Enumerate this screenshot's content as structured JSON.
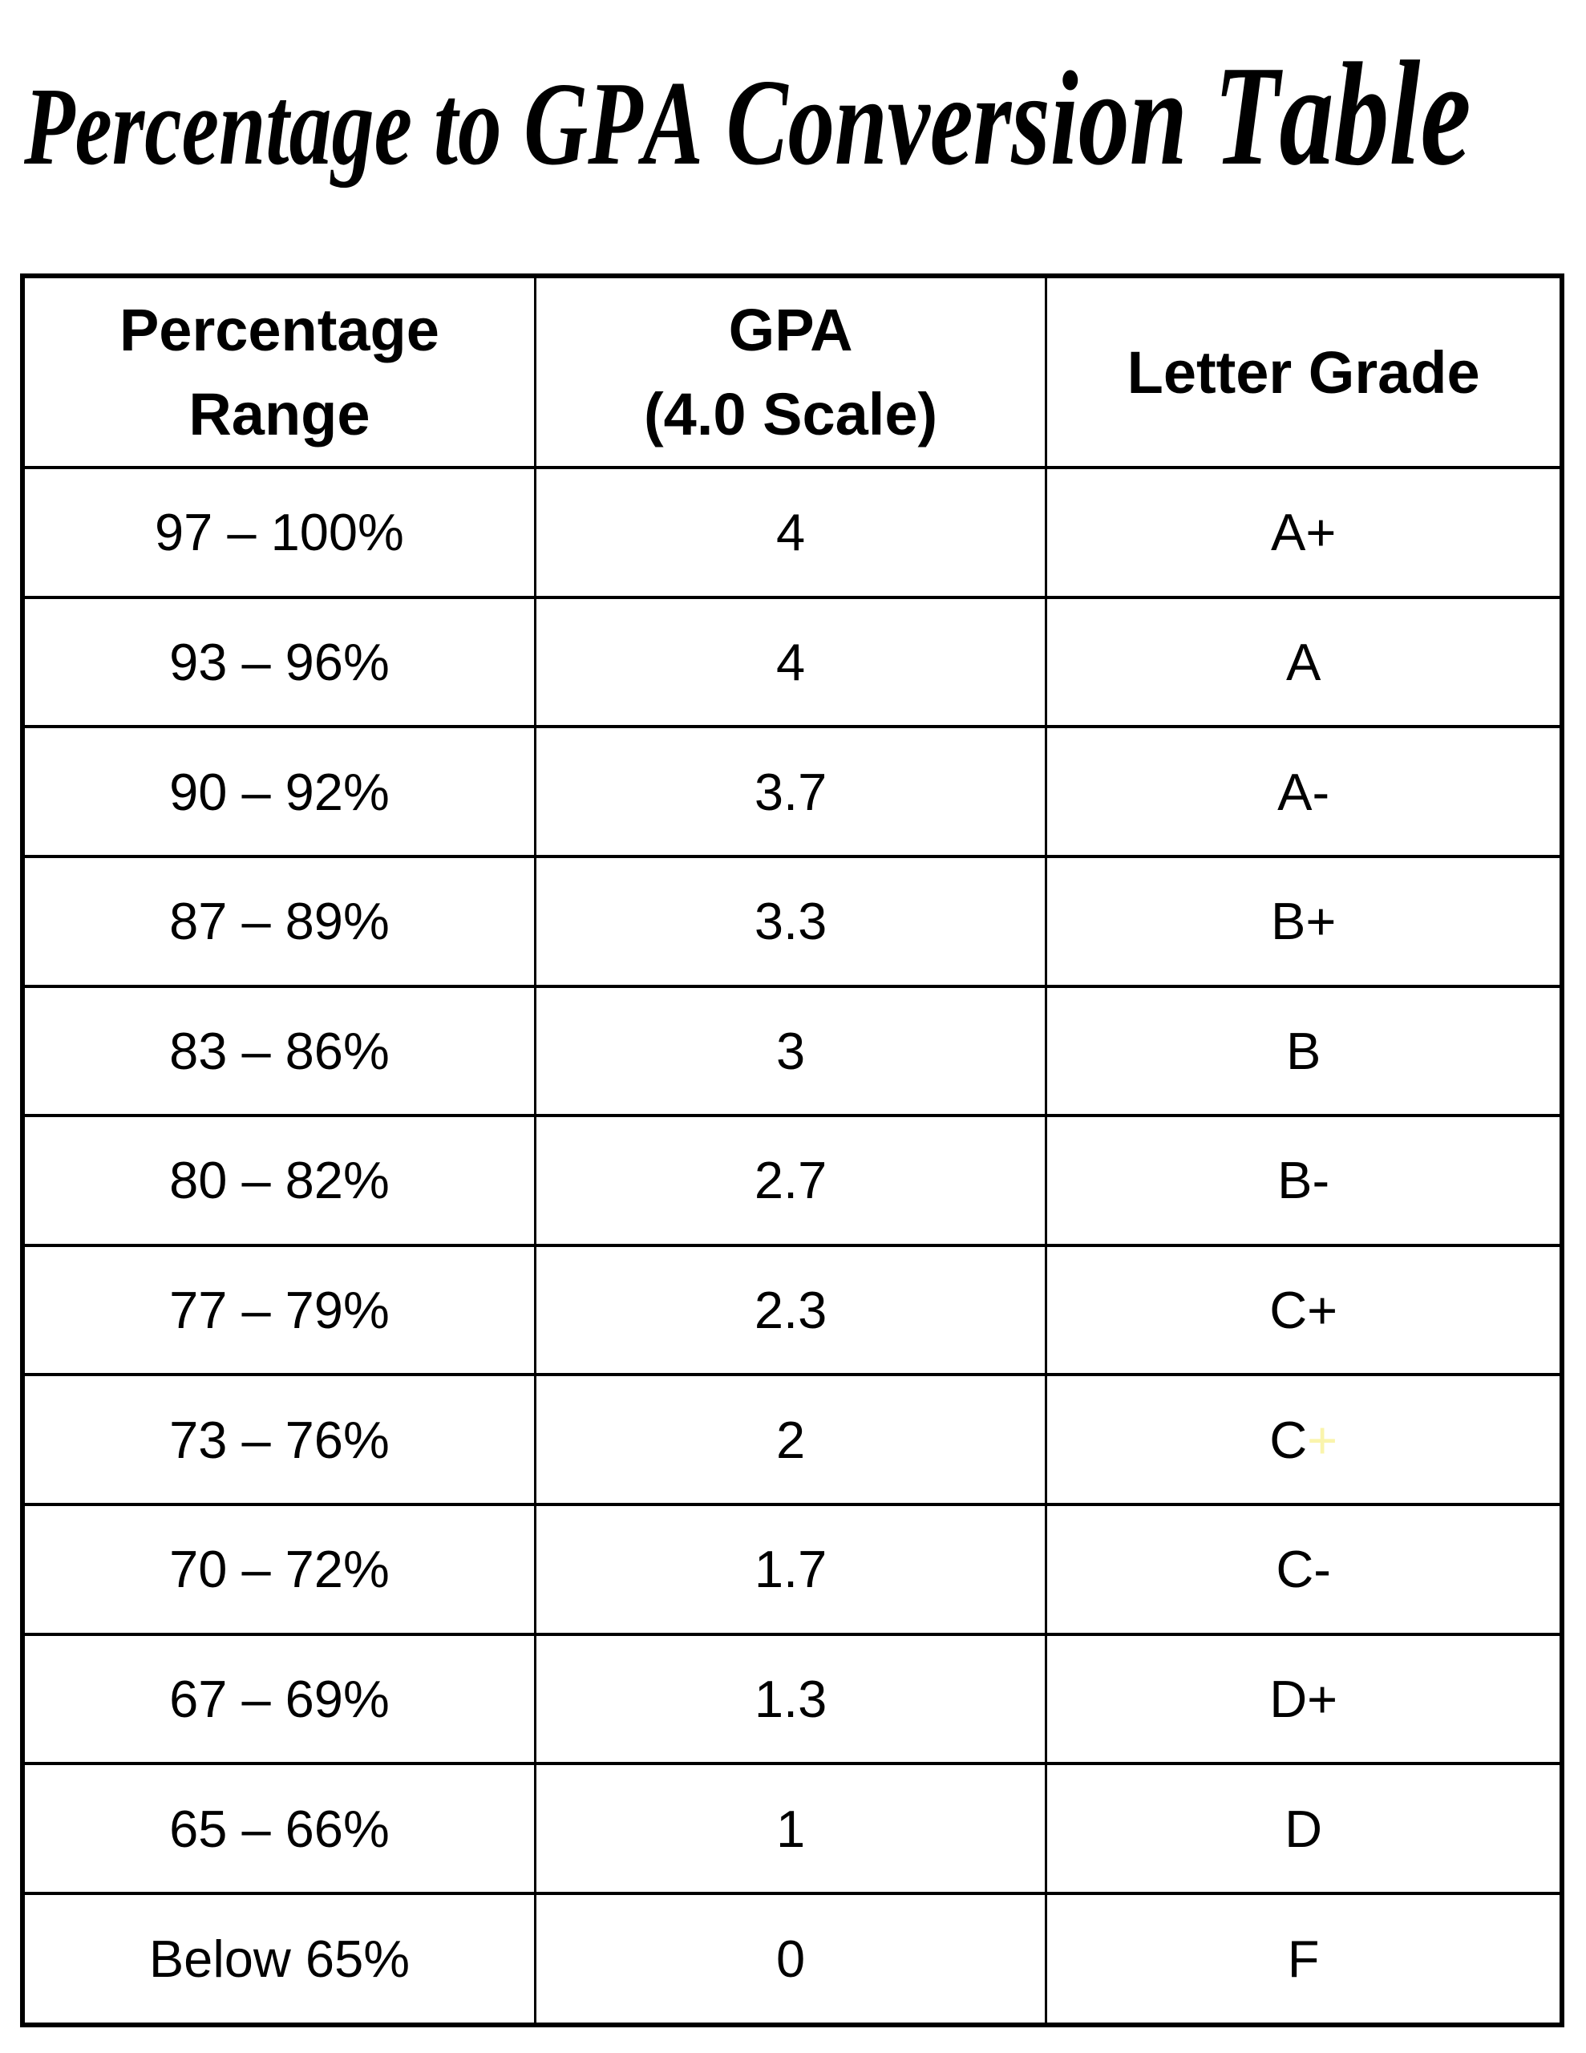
{
  "page": {
    "title": "Percentage to GPA Conversion Table",
    "background_color": "#FFFFFF",
    "text_color": "#000000",
    "border_color": "#000000"
  },
  "table": {
    "headers": [
      {
        "lines": [
          "Percentage",
          "Range"
        ]
      },
      {
        "lines": [
          "GPA",
          "(4.0 Scale)"
        ]
      },
      {
        "lines": [
          "Letter Grade"
        ]
      }
    ],
    "rows": [
      {
        "range": "97 – 100%",
        "gpa": "4",
        "letter": "A+"
      },
      {
        "range": "93 – 96%",
        "gpa": "4",
        "letter": "A"
      },
      {
        "range": "90 – 92%",
        "gpa": "3.7",
        "letter": "A-"
      },
      {
        "range": "87 – 89%",
        "gpa": "3.3",
        "letter": "B+"
      },
      {
        "range": "83 – 86%",
        "gpa": "3",
        "letter": "B"
      },
      {
        "range": "80 – 82%",
        "gpa": "2.7",
        "letter": "B-"
      },
      {
        "range": "77 – 79%",
        "gpa": "2.3",
        "letter": "C+"
      },
      {
        "range": "73 – 76%",
        "gpa": "2",
        "letter": "C",
        "letter_suffix": "+",
        "letter_suffix_color": "#FAF4AC"
      },
      {
        "range": "70 – 72%",
        "gpa": "1.7",
        "letter": "C-"
      },
      {
        "range": "67 – 69%",
        "gpa": "1.3",
        "letter": "D+"
      },
      {
        "range": "65 – 66%",
        "gpa": "1",
        "letter": "D"
      },
      {
        "range": "Below 65%",
        "gpa": "0",
        "letter": "F"
      }
    ]
  }
}
